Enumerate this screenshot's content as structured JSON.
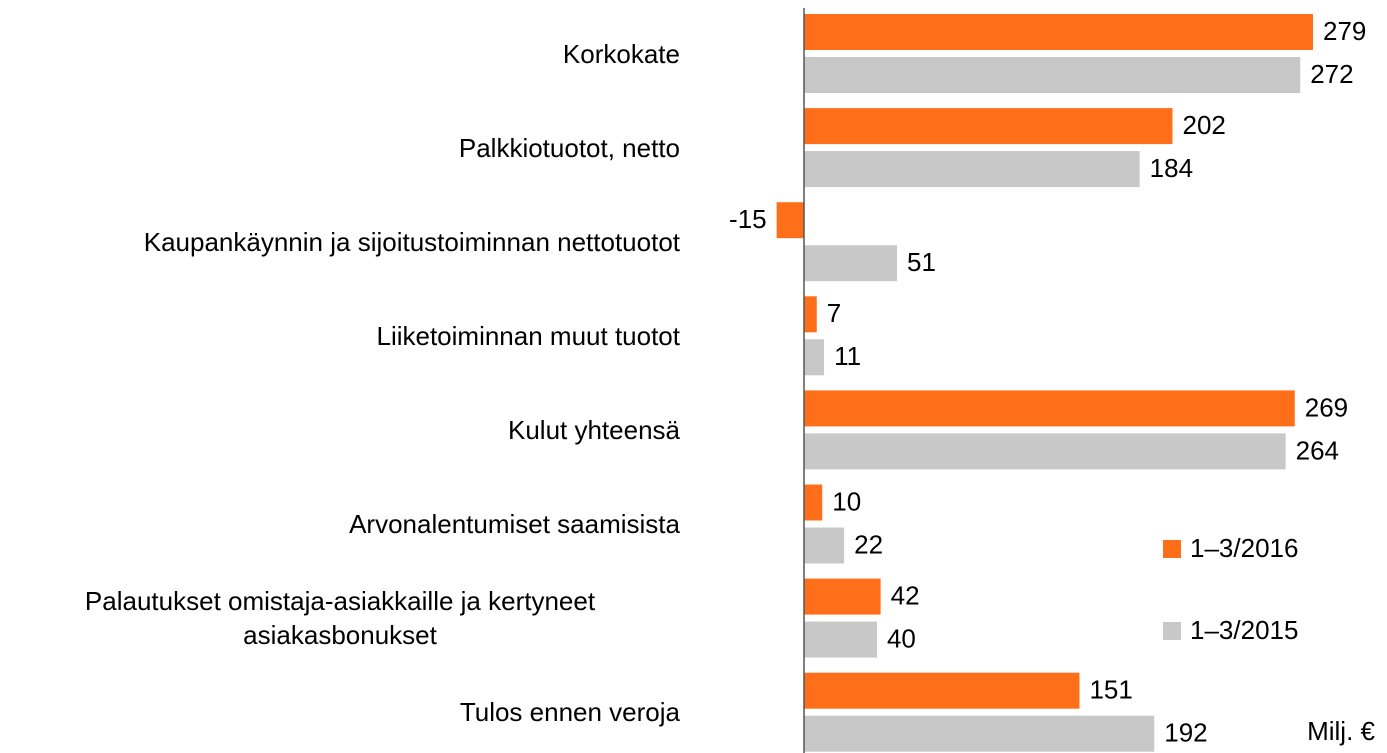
{
  "chart_data": {
    "type": "bar",
    "orientation": "horizontal",
    "categories": [
      "Korkokate",
      "Palkkiotuotot, netto",
      "Kaupankäynnin ja sijoitustoiminnan nettotuotot",
      "Liiketoiminnan muut tuotot",
      "Kulut yhteensä",
      "Arvonalentumiset saamisista",
      "Palautukset omistaja-asiakkaille ja kertyneet asiakasbonukset",
      "Tulos ennen veroja"
    ],
    "series": [
      {
        "name": "1–3/2016",
        "color": "#ff6f1a",
        "values": [
          279,
          202,
          -15,
          7,
          269,
          10,
          42,
          151
        ]
      },
      {
        "name": "1–3/2015",
        "color": "#c8c8c8",
        "values": [
          272,
          184,
          51,
          11,
          264,
          22,
          40,
          192
        ]
      }
    ],
    "unit_label": "Milj. €",
    "legend": "right"
  }
}
